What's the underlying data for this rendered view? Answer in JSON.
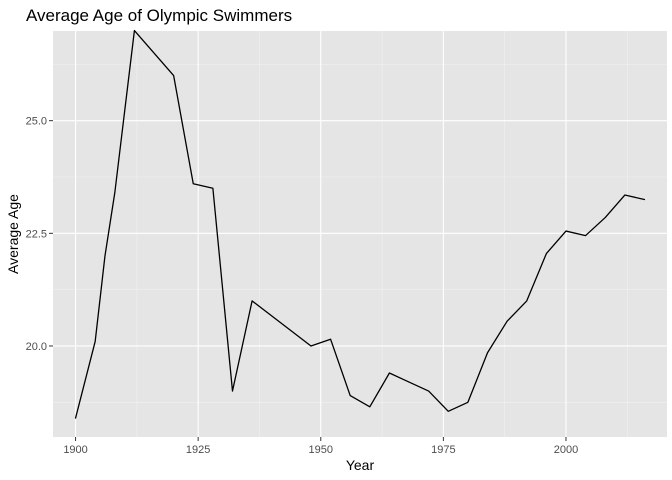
{
  "chart_data": {
    "type": "line",
    "title": "Average Age of Olympic Swimmers",
    "xlabel": "Year",
    "ylabel": "Average Age",
    "xlim": [
      1895.4,
      2020.6
    ],
    "ylim": [
      17.98,
      26.99
    ],
    "x_ticks": [
      1900,
      1925,
      1950,
      1975,
      2000
    ],
    "x_tick_labels": [
      "1900",
      "1925",
      "1950",
      "1975",
      "2000"
    ],
    "y_ticks": [
      20.0,
      22.5,
      25.0
    ],
    "y_tick_labels": [
      "20.0",
      "22.5",
      "25.0"
    ],
    "grid": true,
    "panel_background": "#e5e5e5",
    "line_color": "#000000",
    "series": [
      {
        "x": [
          1900,
          1904,
          1906,
          1908,
          1912,
          1920,
          1924,
          1928,
          1932,
          1936,
          1948,
          1952,
          1956,
          1960,
          1964,
          1968,
          1972,
          1976,
          1980,
          1984,
          1988,
          1992,
          1996,
          2000,
          2004,
          2008,
          2012,
          2016
        ],
        "values": [
          18.4,
          20.1,
          22.0,
          23.4,
          27.0,
          26.0,
          23.6,
          23.5,
          19.0,
          21.0,
          20.0,
          20.15,
          18.9,
          18.65,
          19.4,
          19.2,
          19.0,
          18.55,
          18.75,
          19.85,
          20.55,
          21.0,
          22.05,
          22.55,
          22.45,
          22.85,
          23.35,
          23.25
        ]
      }
    ]
  }
}
